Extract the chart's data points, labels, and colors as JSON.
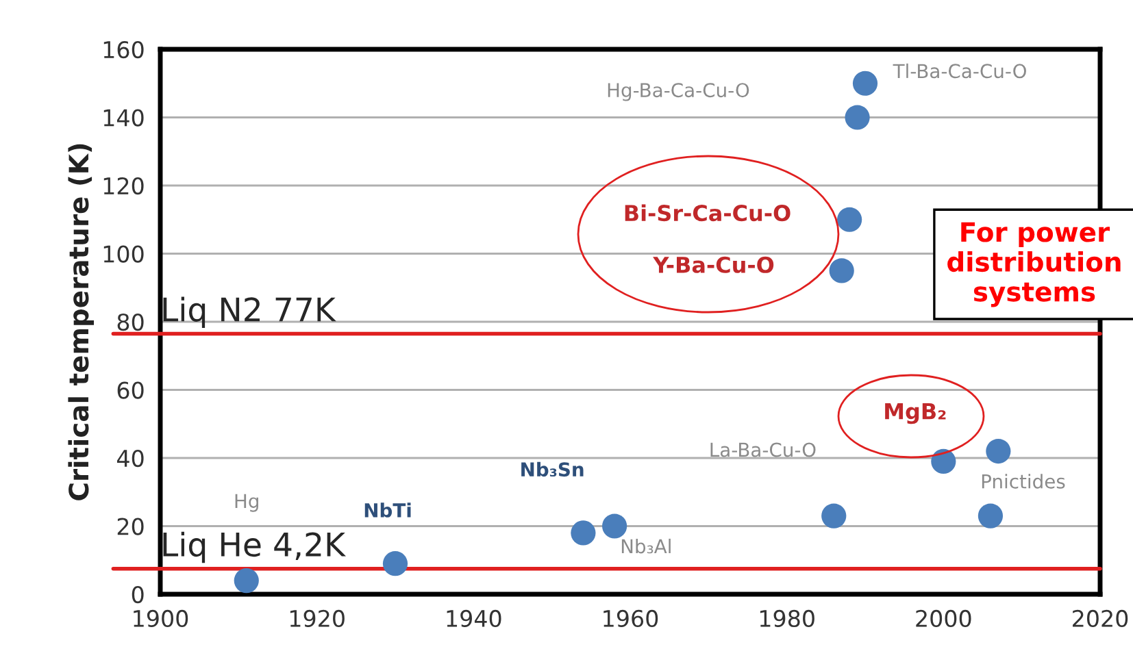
{
  "chart_data": {
    "type": "scatter",
    "ylabel": "Critical temperature (K)",
    "x": [
      1911,
      1930,
      1954,
      1958,
      1986,
      1987,
      1988,
      1989,
      1990,
      2000,
      2006,
      2007
    ],
    "values": [
      4,
      9,
      18,
      20,
      23,
      95,
      110,
      140,
      150,
      39,
      23,
      42
    ],
    "color": "#4a7ebb",
    "marker": "circle",
    "xlim": [
      1900,
      2020
    ],
    "xticks": [
      1900,
      1920,
      1940,
      1960,
      1980,
      2000,
      2020
    ],
    "ylim": [
      0,
      160
    ],
    "yticks": [
      0,
      20,
      40,
      60,
      80,
      100,
      120,
      140,
      160
    ],
    "grid": "y",
    "ref_lines": [
      {
        "axis": "y",
        "value": 76.5,
        "label": "Liq N2 77K",
        "color": "#e02020"
      },
      {
        "axis": "y",
        "value": 7.5,
        "label": "Liq He 4,2K",
        "color": "#e02020"
      }
    ],
    "annotations": [
      "Hg",
      "NbTi",
      "Nb₃Sn",
      "Nb₃Al",
      "La-Ba-Cu-O",
      "Y-Ba-Cu-O",
      "Bi-Sr-Ca-Cu-O",
      "Hg-Ba-Ca-Cu-O",
      "Tl-Ba-Ca-Cu-O",
      "MgB₂",
      "Pnictides",
      "For power distribution systems"
    ]
  }
}
